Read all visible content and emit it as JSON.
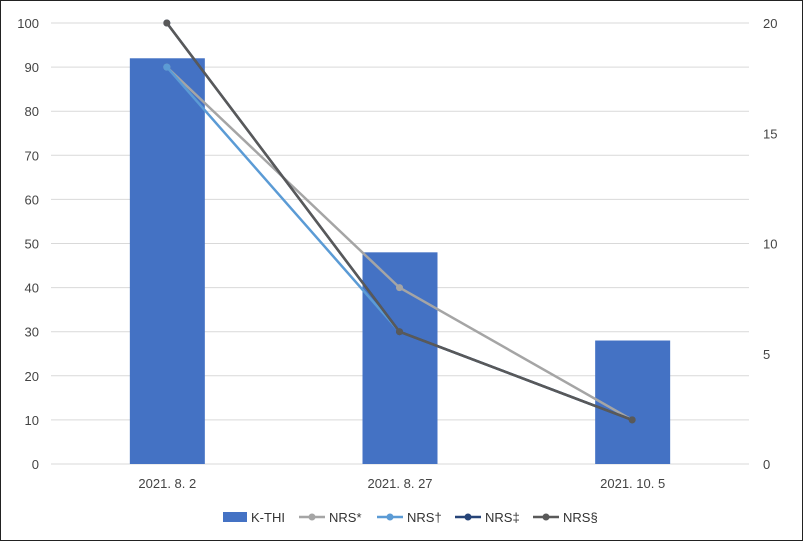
{
  "chart_data": {
    "type": "bar",
    "categories": [
      "2021. 8. 2",
      "2021. 8. 27",
      "2021. 10. 5"
    ],
    "bar_series": {
      "name": "K-THI",
      "values": [
        92,
        48,
        28
      ],
      "axis": "left",
      "color": "#4472C4"
    },
    "line_series": [
      {
        "name": "NRS*",
        "values": [
          18,
          8,
          2
        ],
        "axis": "right",
        "color": "#A5A5A5"
      },
      {
        "name": "NRS†",
        "values": [
          18,
          6,
          2
        ],
        "axis": "right",
        "color": "#5B9BD5"
      },
      {
        "name": "NRS‡",
        "values": [
          20,
          6,
          2
        ],
        "axis": "right",
        "color": "#264478"
      },
      {
        "name": "NRS§",
        "values": [
          20,
          6,
          2
        ],
        "axis": "right",
        "color": "#595959"
      }
    ],
    "left_axis": {
      "min": 0,
      "max": 100,
      "step": 10,
      "ticks": [
        "0",
        "10",
        "20",
        "30",
        "40",
        "50",
        "60",
        "70",
        "80",
        "90",
        "100"
      ]
    },
    "right_axis": {
      "min": 0,
      "max": 20,
      "step": 5,
      "ticks": [
        "0",
        "5",
        "10",
        "15",
        "20"
      ]
    },
    "grid": true,
    "legend_position": "bottom"
  }
}
